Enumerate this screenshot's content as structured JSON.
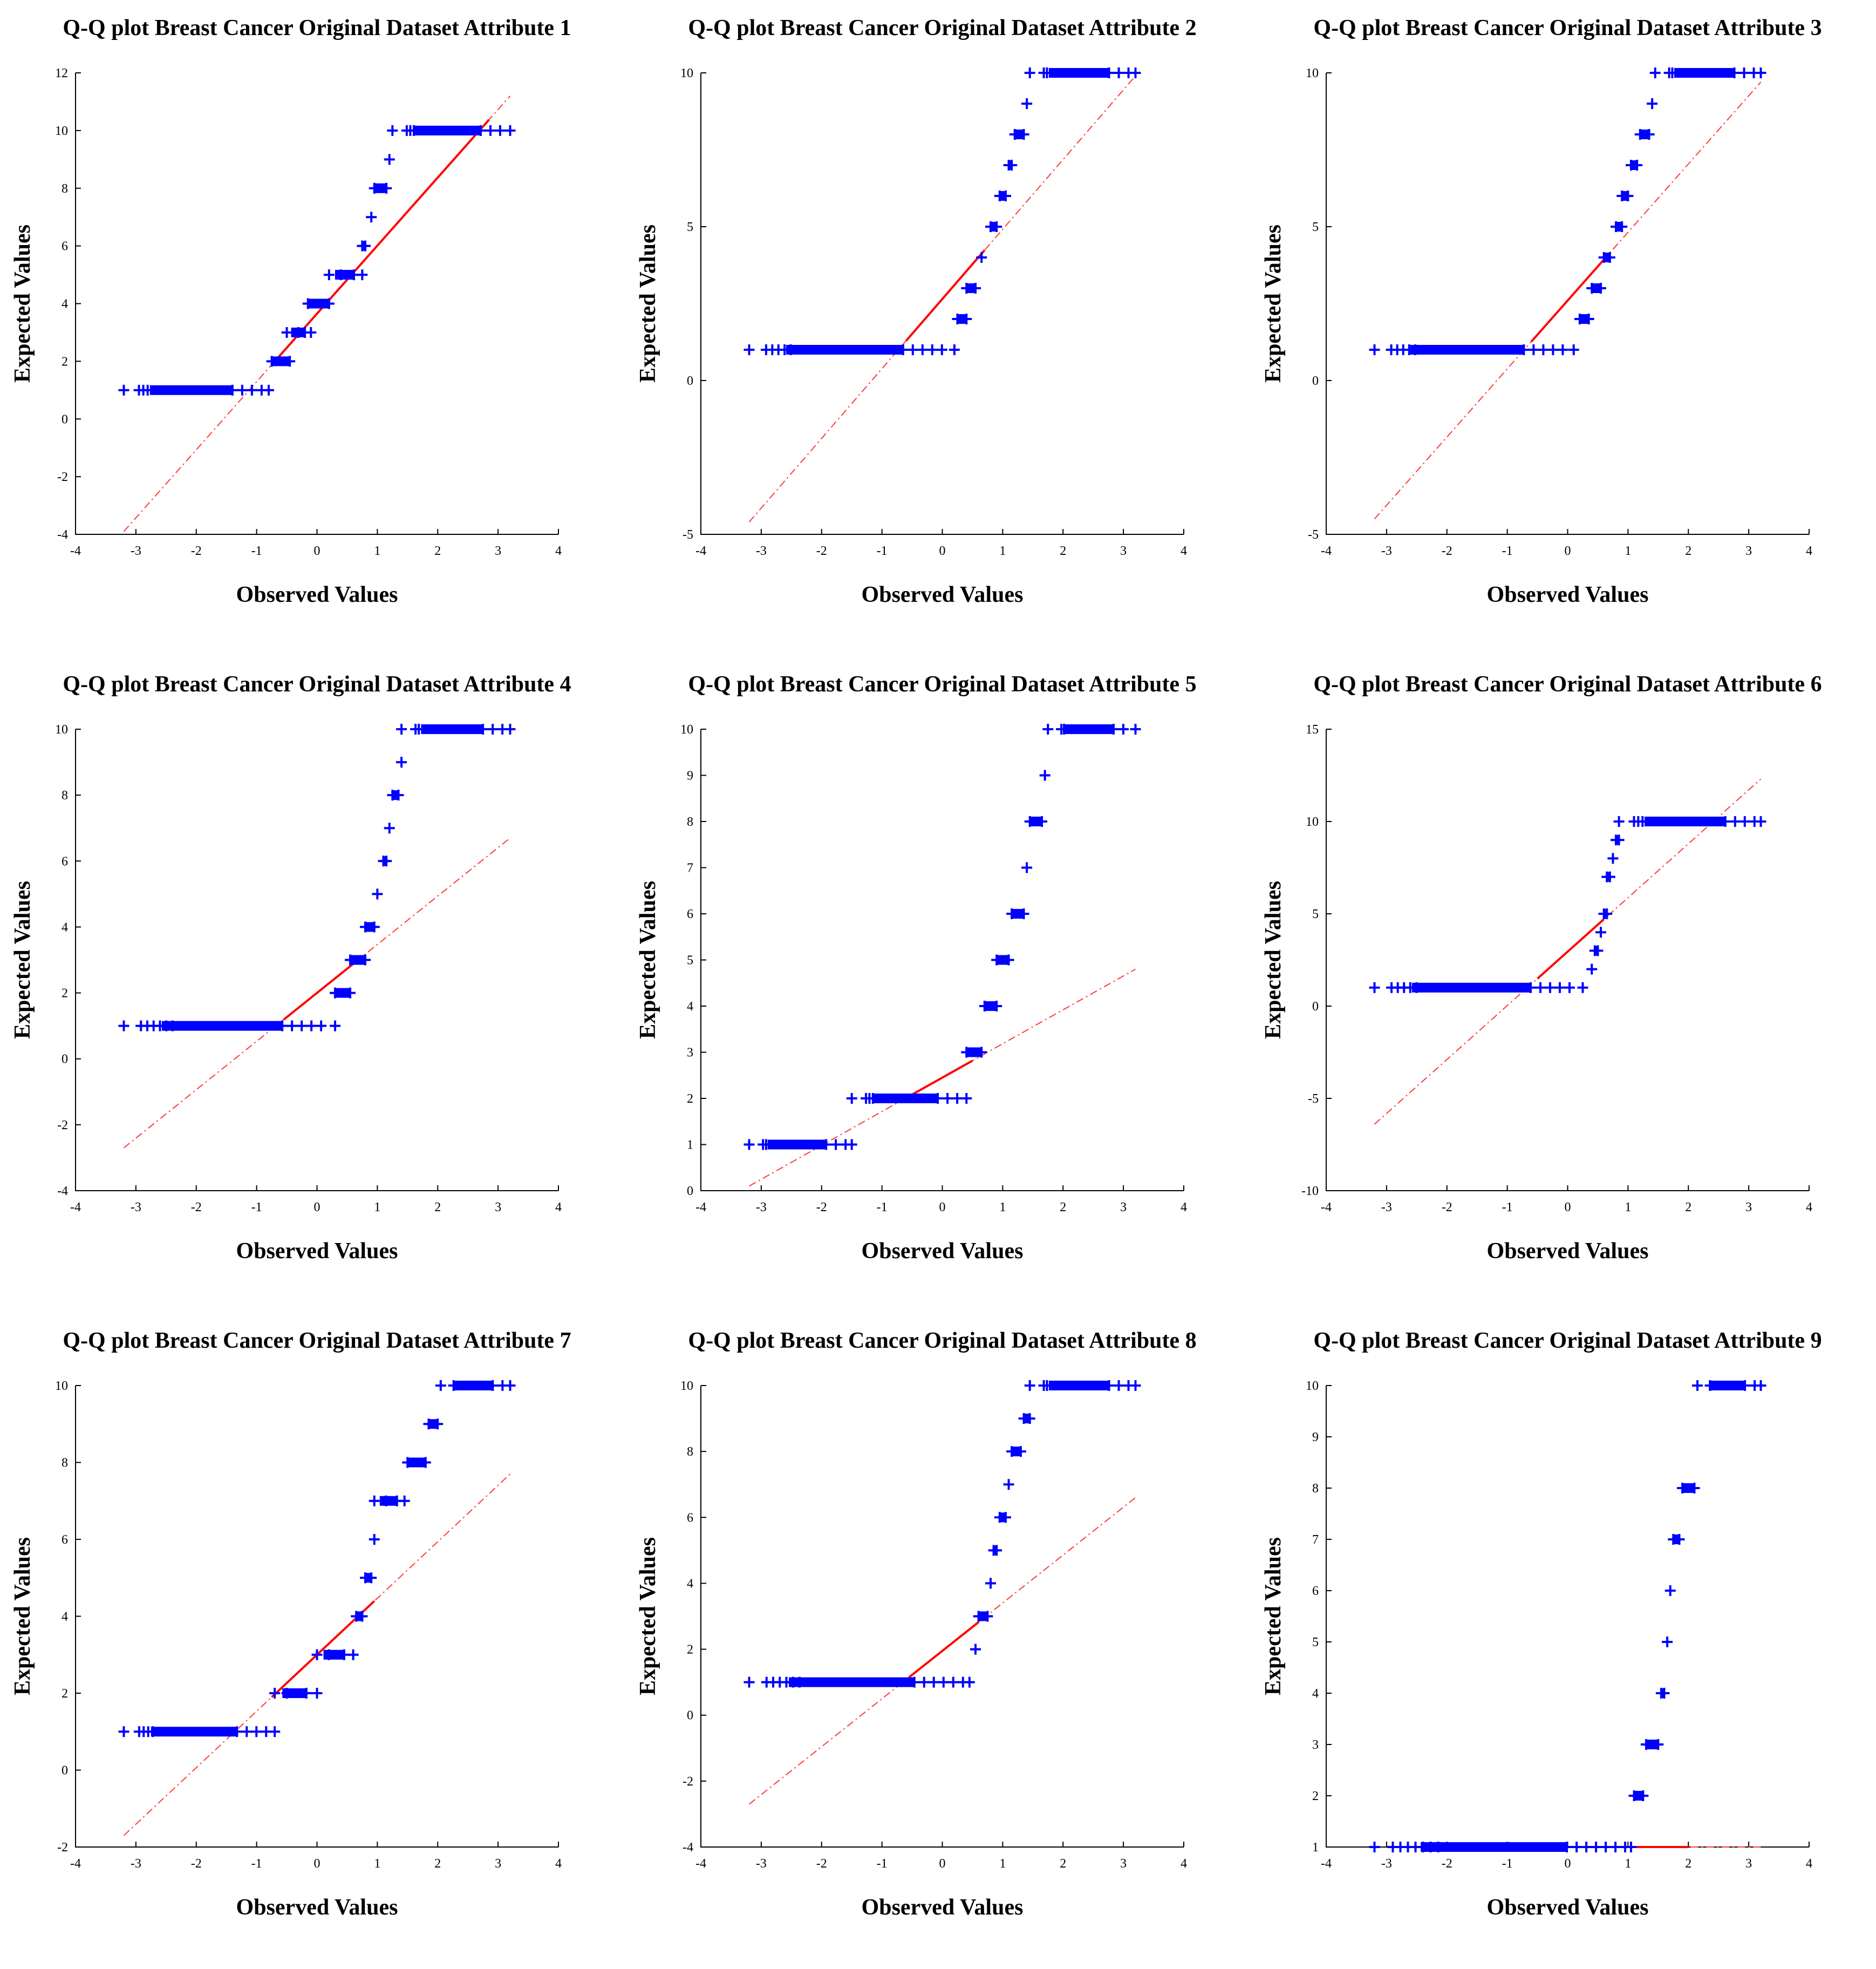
{
  "chart_data": [
    {
      "type": "scatter",
      "title": "Q-Q plot Breast Cancer Original Dataset Attribute 1",
      "xlabel": "Observed Values",
      "ylabel": "Expected Values",
      "xlim": [
        -4,
        4
      ],
      "ylim": [
        -4,
        12
      ],
      "xticks": [
        "-4",
        "-3",
        "-2",
        "-1",
        "0",
        "1",
        "2",
        "3",
        "4"
      ],
      "yticks": [
        "-4",
        "-2",
        "0",
        "2",
        "4",
        "6",
        "8",
        "10",
        "12"
      ],
      "points": [
        {
          "y": 1,
          "x_start": -3.2,
          "x_end": -0.8
        },
        {
          "y": 2,
          "x_start": -0.75,
          "x_end": -0.45
        },
        {
          "y": 3,
          "x_start": -0.5,
          "x_end": -0.1
        },
        {
          "y": 4,
          "x_start": -0.15,
          "x_end": 0.2
        },
        {
          "y": 5,
          "x_start": 0.2,
          "x_end": 0.75
        },
        {
          "y": 6,
          "x_start": 0.75,
          "x_end": 0.8
        },
        {
          "y": 7,
          "x_start": 0.9,
          "x_end": 0.92
        },
        {
          "y": 8,
          "x_start": 0.95,
          "x_end": 1.15
        },
        {
          "y": 9,
          "x_start": 1.2,
          "x_end": 1.2
        },
        {
          "y": 10,
          "x_start": 1.25,
          "x_end": 3.2
        }
      ],
      "ref_line": [
        [
          -3.2,
          -3.9
        ],
        [
          3.2,
          11.2
        ]
      ],
      "ref_solid": [
        -0.75,
        2.85
      ]
    },
    {
      "type": "scatter",
      "title": "Q-Q plot Breast Cancer Original Dataset Attribute 2",
      "xlabel": "Observed Values",
      "ylabel": "Expected Values",
      "xlim": [
        -4,
        4
      ],
      "ylim": [
        -5,
        10
      ],
      "xticks": [
        "-4",
        "-3",
        "-2",
        "-1",
        "0",
        "1",
        "2",
        "3",
        "4"
      ],
      "yticks": [
        "-5",
        "0",
        "5",
        "10"
      ],
      "points": [
        {
          "y": 1,
          "x_start": -3.2,
          "x_end": 0.2
        },
        {
          "y": 2,
          "x_start": 0.25,
          "x_end": 0.4
        },
        {
          "y": 3,
          "x_start": 0.4,
          "x_end": 0.55
        },
        {
          "y": 4,
          "x_start": 0.65,
          "x_end": 0.65
        },
        {
          "y": 5,
          "x_start": 0.8,
          "x_end": 0.9
        },
        {
          "y": 6,
          "x_start": 0.95,
          "x_end": 1.05
        },
        {
          "y": 7,
          "x_start": 1.1,
          "x_end": 1.15
        },
        {
          "y": 8,
          "x_start": 1.2,
          "x_end": 1.35
        },
        {
          "y": 9,
          "x_start": 1.4,
          "x_end": 1.4
        },
        {
          "y": 10,
          "x_start": 1.45,
          "x_end": 3.2
        }
      ],
      "ref_line": [
        [
          -3.2,
          -4.6
        ],
        [
          3.2,
          9.9
        ]
      ],
      "ref_solid": [
        -0.6,
        0.7
      ]
    },
    {
      "type": "scatter",
      "title": "Q-Q plot Breast Cancer Original Dataset Attribute 3",
      "xlabel": "Observed Values",
      "ylabel": "Expected Values",
      "xlim": [
        -4,
        4
      ],
      "ylim": [
        -5,
        10
      ],
      "xticks": [
        "-4",
        "-3",
        "-2",
        "-1",
        "0",
        "1",
        "2",
        "3",
        "4"
      ],
      "yticks": [
        "-5",
        "0",
        "5",
        "10"
      ],
      "points": [
        {
          "y": 1,
          "x_start": -3.2,
          "x_end": 0.1
        },
        {
          "y": 2,
          "x_start": 0.2,
          "x_end": 0.35
        },
        {
          "y": 3,
          "x_start": 0.4,
          "x_end": 0.55
        },
        {
          "y": 4,
          "x_start": 0.6,
          "x_end": 0.7
        },
        {
          "y": 5,
          "x_start": 0.8,
          "x_end": 0.9
        },
        {
          "y": 6,
          "x_start": 0.9,
          "x_end": 1.0
        },
        {
          "y": 7,
          "x_start": 1.05,
          "x_end": 1.15
        },
        {
          "y": 8,
          "x_start": 1.2,
          "x_end": 1.35
        },
        {
          "y": 9,
          "x_start": 1.4,
          "x_end": 1.4
        },
        {
          "y": 10,
          "x_start": 1.45,
          "x_end": 3.2
        }
      ],
      "ref_line": [
        [
          -3.2,
          -4.5
        ],
        [
          3.2,
          9.7
        ]
      ],
      "ref_solid": [
        -0.6,
        0.7
      ]
    },
    {
      "type": "scatter",
      "title": "Q-Q plot Breast Cancer Original Dataset Attribute  4",
      "xlabel": "Observed Values",
      "ylabel": "Expected Values",
      "xlim": [
        -4,
        4
      ],
      "ylim": [
        -4,
        10
      ],
      "xticks": [
        "-4",
        "-3",
        "-2",
        "-1",
        "0",
        "1",
        "2",
        "3",
        "4"
      ],
      "yticks": [
        "-4",
        "-2",
        "0",
        "2",
        "4",
        "6",
        "8",
        "10"
      ],
      "points": [
        {
          "y": 1,
          "x_start": -3.2,
          "x_end": 0.3
        },
        {
          "y": 2,
          "x_start": 0.3,
          "x_end": 0.55
        },
        {
          "y": 3,
          "x_start": 0.55,
          "x_end": 0.8
        },
        {
          "y": 4,
          "x_start": 0.8,
          "x_end": 0.95
        },
        {
          "y": 5,
          "x_start": 1.0,
          "x_end": 1.0
        },
        {
          "y": 6,
          "x_start": 1.1,
          "x_end": 1.15
        },
        {
          "y": 7,
          "x_start": 1.2,
          "x_end": 1.2
        },
        {
          "y": 8,
          "x_start": 1.25,
          "x_end": 1.35
        },
        {
          "y": 9,
          "x_start": 1.4,
          "x_end": 1.4
        },
        {
          "y": 10,
          "x_start": 1.4,
          "x_end": 3.2
        }
      ],
      "ref_line": [
        [
          -3.2,
          -2.7
        ],
        [
          3.2,
          6.7
        ]
      ],
      "ref_solid": [
        -0.55,
        0.6
      ]
    },
    {
      "type": "scatter",
      "title": "Q-Q plot Breast Cancer Original Dataset Attribute  5",
      "xlabel": "Observed Values",
      "ylabel": "Expected Values",
      "xlim": [
        -4,
        4
      ],
      "ylim": [
        0,
        10
      ],
      "xticks": [
        "-4",
        "-3",
        "-2",
        "-1",
        "0",
        "1",
        "2",
        "3",
        "4"
      ],
      "yticks": [
        "0",
        "1",
        "2",
        "3",
        "4",
        "5",
        "6",
        "7",
        "8",
        "9",
        "10"
      ],
      "points": [
        {
          "y": 1,
          "x_start": -3.2,
          "x_end": -1.5
        },
        {
          "y": 2,
          "x_start": -1.5,
          "x_end": 0.4
        },
        {
          "y": 3,
          "x_start": 0.4,
          "x_end": 0.65
        },
        {
          "y": 4,
          "x_start": 0.7,
          "x_end": 0.9
        },
        {
          "y": 5,
          "x_start": 0.9,
          "x_end": 1.1
        },
        {
          "y": 6,
          "x_start": 1.15,
          "x_end": 1.35
        },
        {
          "y": 7,
          "x_start": 1.4,
          "x_end": 1.4
        },
        {
          "y": 8,
          "x_start": 1.45,
          "x_end": 1.65
        },
        {
          "y": 9,
          "x_start": 1.7,
          "x_end": 1.7
        },
        {
          "y": 10,
          "x_start": 1.75,
          "x_end": 3.2
        }
      ],
      "ref_line": [
        [
          -3.2,
          0.1
        ],
        [
          3.2,
          4.8
        ]
      ],
      "ref_solid": [
        -0.5,
        0.5
      ]
    },
    {
      "type": "scatter",
      "title": "Q-Q plot Breast Cancer Original Dataset Attribute  6",
      "xlabel": "Observed Values",
      "ylabel": "Expected Values",
      "xlim": [
        -4,
        4
      ],
      "ylim": [
        -10,
        15
      ],
      "xticks": [
        "-4",
        "-3",
        "-2",
        "-1",
        "0",
        "1",
        "2",
        "3",
        "4"
      ],
      "yticks": [
        "-10",
        "-5",
        "0",
        "5",
        "10",
        "15"
      ],
      "points": [
        {
          "y": 1,
          "x_start": -3.2,
          "x_end": 0.25
        },
        {
          "y": 2,
          "x_start": 0.4,
          "x_end": 0.4
        },
        {
          "y": 3,
          "x_start": 0.45,
          "x_end": 0.5
        },
        {
          "y": 4,
          "x_start": 0.55,
          "x_end": 0.55
        },
        {
          "y": 5,
          "x_start": 0.6,
          "x_end": 0.65
        },
        {
          "y": 7,
          "x_start": 0.65,
          "x_end": 0.7
        },
        {
          "y": 8,
          "x_start": 0.75,
          "x_end": 0.75
        },
        {
          "y": 9,
          "x_start": 0.8,
          "x_end": 0.85
        },
        {
          "y": 10,
          "x_start": 0.85,
          "x_end": 3.2
        }
      ],
      "ref_line": [
        [
          -3.2,
          -6.4
        ],
        [
          3.2,
          12.3
        ]
      ],
      "ref_solid": [
        -0.5,
        0.6
      ]
    },
    {
      "type": "scatter",
      "title": "Q-Q plot Breast Cancer Original Dataset Attribute   7",
      "xlabel": "Observed Values",
      "ylabel": "Expected Values",
      "xlim": [
        -4,
        4
      ],
      "ylim": [
        -2,
        10
      ],
      "xticks": [
        "-4",
        "-3",
        "-2",
        "-1",
        "0",
        "1",
        "2",
        "3",
        "4"
      ],
      "yticks": [
        "-2",
        "0",
        "2",
        "4",
        "6",
        "8",
        "10"
      ],
      "points": [
        {
          "y": 1,
          "x_start": -3.2,
          "x_end": -0.7
        },
        {
          "y": 2,
          "x_start": -0.7,
          "x_end": 0.0
        },
        {
          "y": 3,
          "x_start": 0.0,
          "x_end": 0.6
        },
        {
          "y": 4,
          "x_start": 0.65,
          "x_end": 0.75
        },
        {
          "y": 5,
          "x_start": 0.8,
          "x_end": 0.9
        },
        {
          "y": 6,
          "x_start": 0.95,
          "x_end": 0.95
        },
        {
          "y": 7,
          "x_start": 0.95,
          "x_end": 1.45
        },
        {
          "y": 8,
          "x_start": 1.5,
          "x_end": 1.8
        },
        {
          "y": 9,
          "x_start": 1.85,
          "x_end": 2.0
        },
        {
          "y": 10,
          "x_start": 2.05,
          "x_end": 3.2
        }
      ],
      "ref_line": [
        [
          -3.2,
          -1.7
        ],
        [
          3.2,
          7.7
        ]
      ],
      "ref_solid": [
        -0.75,
        0.95
      ]
    },
    {
      "type": "scatter",
      "title": "Q-Q plot Breast Cancer Original Dataset Attribute  8",
      "xlabel": "Observed Values",
      "ylabel": "Expected Values",
      "xlim": [
        -4,
        4
      ],
      "ylim": [
        -4,
        10
      ],
      "xticks": [
        "-4",
        "-3",
        "-2",
        "-1",
        "0",
        "1",
        "2",
        "3",
        "4"
      ],
      "yticks": [
        "-4",
        "-2",
        "0",
        "2",
        "4",
        "6",
        "8",
        "10"
      ],
      "points": [
        {
          "y": 1,
          "x_start": -3.2,
          "x_end": 0.45
        },
        {
          "y": 2,
          "x_start": 0.55,
          "x_end": 0.55
        },
        {
          "y": 3,
          "x_start": 0.6,
          "x_end": 0.75
        },
        {
          "y": 4,
          "x_start": 0.8,
          "x_end": 0.8
        },
        {
          "y": 5,
          "x_start": 0.85,
          "x_end": 0.9
        },
        {
          "y": 6,
          "x_start": 0.95,
          "x_end": 1.05
        },
        {
          "y": 7,
          "x_start": 1.1,
          "x_end": 1.1
        },
        {
          "y": 8,
          "x_start": 1.15,
          "x_end": 1.3
        },
        {
          "y": 9,
          "x_start": 1.35,
          "x_end": 1.45
        },
        {
          "y": 10,
          "x_start": 1.45,
          "x_end": 3.2
        }
      ],
      "ref_line": [
        [
          -3.2,
          -2.7
        ],
        [
          3.2,
          6.6
        ]
      ],
      "ref_solid": [
        -0.55,
        0.6
      ]
    },
    {
      "type": "scatter",
      "title": "Q-Q plot Breast Cancer Original Dataset Attribute  9",
      "xlabel": "Observed Values",
      "ylabel": "Expected Values",
      "xlim": [
        -4,
        4
      ],
      "ylim": [
        1,
        10
      ],
      "xticks": [
        "-4",
        "-3",
        "-2",
        "-1",
        "0",
        "1",
        "2",
        "3",
        "4"
      ],
      "yticks": [
        "1",
        "2",
        "3",
        "4",
        "5",
        "6",
        "7",
        "8",
        "9",
        "10"
      ],
      "points": [
        {
          "y": 1,
          "x_start": -3.2,
          "x_end": 1.05
        },
        {
          "y": 2,
          "x_start": 1.1,
          "x_end": 1.25
        },
        {
          "y": 3,
          "x_start": 1.3,
          "x_end": 1.5
        },
        {
          "y": 4,
          "x_start": 1.55,
          "x_end": 1.6
        },
        {
          "y": 5,
          "x_start": 1.65,
          "x_end": 1.65
        },
        {
          "y": 6,
          "x_start": 1.7,
          "x_end": 1.7
        },
        {
          "y": 7,
          "x_start": 1.75,
          "x_end": 1.85
        },
        {
          "y": 8,
          "x_start": 1.9,
          "x_end": 2.1
        },
        {
          "y": 10,
          "x_start": 2.15,
          "x_end": 3.2
        }
      ],
      "ref_line": [
        [
          1.0,
          1.0
        ],
        [
          3.2,
          1.0
        ]
      ],
      "ref_solid": [
        1.0,
        2.0
      ]
    }
  ]
}
